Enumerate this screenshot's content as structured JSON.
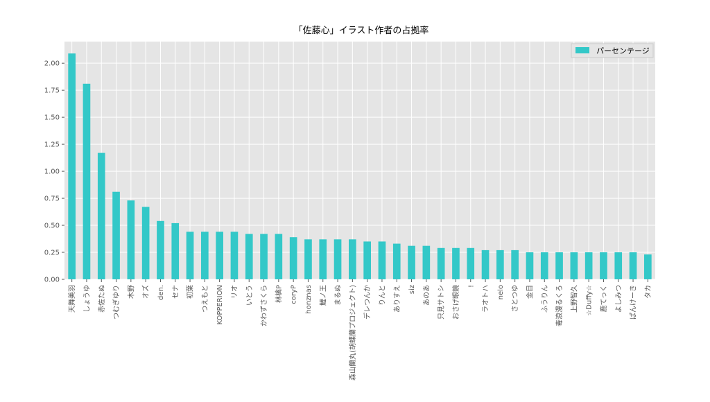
{
  "chart_data": {
    "type": "bar",
    "title": "「佐藤心」イラスト作者の占拠率",
    "xlabel": "",
    "ylabel": "",
    "ylim": [
      0,
      2.2
    ],
    "yticks": [
      "0.00",
      "0.25",
      "0.50",
      "0.75",
      "1.00",
      "1.25",
      "1.50",
      "1.75",
      "2.00"
    ],
    "ytick_values": [
      0,
      0.25,
      0.5,
      0.75,
      1.0,
      1.25,
      1.5,
      1.75,
      2.0
    ],
    "grid": true,
    "legend_position": "top-right",
    "colors": {
      "bar": "#33c8c8",
      "background": "#e5e5e5",
      "grid": "#ffffff"
    },
    "categories": [
      "天舞美羽",
      "しょうゆ",
      "赤佐たぬ",
      "つむぎゆり",
      "木野",
      "オズ",
      "den.",
      "セナ",
      "初葉",
      "つえもと",
      "KOPPERION",
      "リオ",
      "いとう",
      "かわずさくら",
      "林檎P",
      "coryP",
      "honznas",
      "鯉ノ王",
      "まるぬ",
      "森山蘭丸(胡蝶蘭プロジェクト)",
      "デレつんか",
      "りんと",
      "ありすえ",
      "siz",
      "あのあ",
      "只見サトシ",
      "おさげ眼鏡",
      "!",
      "ラオトハ",
      "nelo",
      "さとつゆ",
      "金目",
      "ふうりん",
      "毒浪漫るくろ",
      "上野智久",
      "☆Duffy☆",
      "鹿てっく",
      "よしみつ",
      "ぱんけーき",
      "タカ"
    ],
    "series": [
      {
        "name": "パーセンテージ",
        "values": [
          2.09,
          1.81,
          1.17,
          0.81,
          0.73,
          0.67,
          0.54,
          0.52,
          0.44,
          0.44,
          0.44,
          0.44,
          0.42,
          0.42,
          0.42,
          0.39,
          0.37,
          0.37,
          0.37,
          0.37,
          0.35,
          0.35,
          0.33,
          0.31,
          0.31,
          0.29,
          0.29,
          0.29,
          0.27,
          0.27,
          0.27,
          0.25,
          0.25,
          0.25,
          0.25,
          0.25,
          0.25,
          0.25,
          0.25,
          0.23
        ]
      }
    ]
  }
}
